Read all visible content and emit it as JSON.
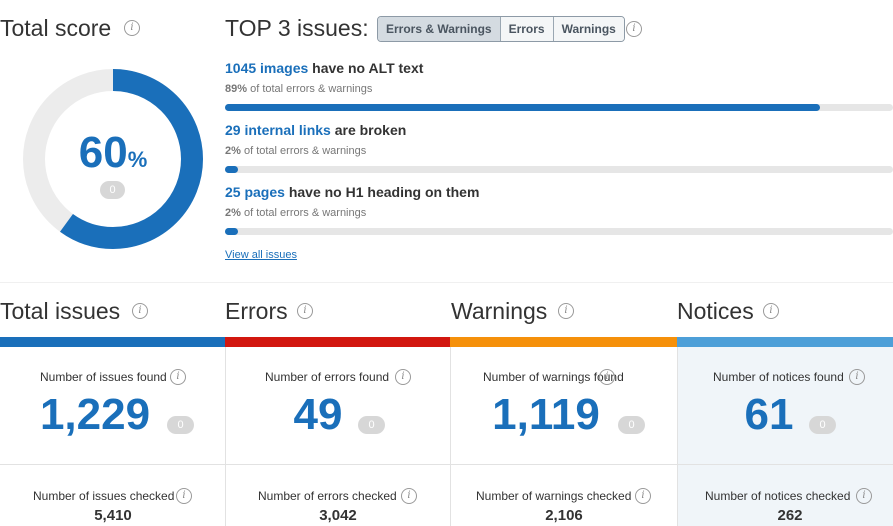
{
  "score": {
    "title": "Total score",
    "value": "60",
    "unit": "%",
    "badge": "0",
    "fraction": 0.6
  },
  "top_issues": {
    "title": "TOP 3 issues:",
    "filters": [
      "Errors & Warnings",
      "Errors",
      "Warnings"
    ],
    "active_filter": "Errors & Warnings",
    "items": [
      {
        "link": "1045 images",
        "text": " have no ALT text",
        "pct": "89%",
        "sub": " of total errors & warnings",
        "fraction": 0.89
      },
      {
        "link": "29 internal links",
        "text": " are broken",
        "pct": "2%",
        "sub": " of total errors & warnings",
        "fraction": 0.02
      },
      {
        "link": "25 pages",
        "text": " have no H1 heading on them",
        "pct": "2%",
        "sub": " of total errors & warnings",
        "fraction": 0.02
      }
    ],
    "view_all": "View all issues"
  },
  "stats": [
    {
      "title": "Total issues",
      "color": "#1a6fba",
      "found_label": "Number of issues found",
      "found": "1,229",
      "badge": "0",
      "checked_label": "Number of issues checked",
      "checked": "5,410"
    },
    {
      "title": "Errors",
      "color": "#d2170f",
      "found_label": "Number of errors found",
      "found": "49",
      "badge": "0",
      "checked_label": "Number of errors checked",
      "checked": "3,042"
    },
    {
      "title": "Warnings",
      "color": "#f5900a",
      "found_label": "Number of warnings found",
      "found": "1,119",
      "badge": "0",
      "checked_label": "Number of warnings checked",
      "checked": "2,106"
    },
    {
      "title": "Notices",
      "color": "#4d9fd8",
      "found_label": "Number of notices found",
      "found": "61",
      "badge": "0",
      "checked_label": "Number of notices checked",
      "checked": "262"
    }
  ],
  "icons": {
    "info": "i"
  }
}
